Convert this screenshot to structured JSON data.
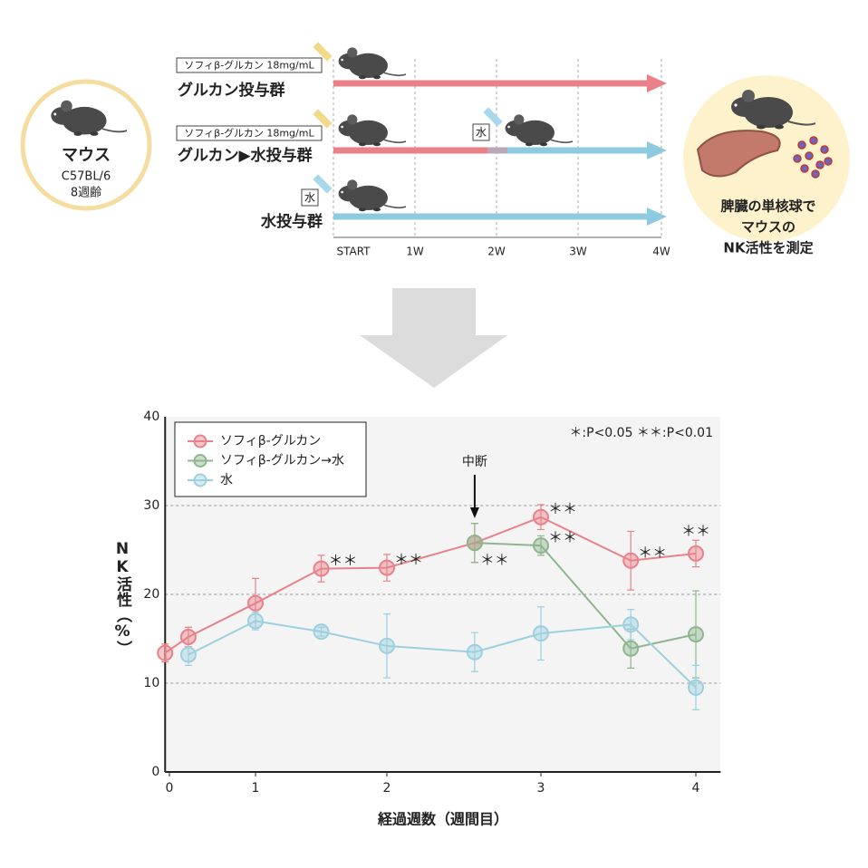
{
  "diagram": {
    "mouse": {
      "title": "マウス",
      "strain": "C57BL/6",
      "age": "8週齢"
    },
    "groups": [
      {
        "dose": "ソフィβ-グルカン 18mg/mL",
        "name": "グルカン投与群"
      },
      {
        "dose": "ソフィβ-グルカン 18mg/mL",
        "name": "グルカン▶水投与群",
        "switch": "水"
      },
      {
        "dose": "水",
        "name": "水投与群"
      }
    ],
    "timeline": [
      "START",
      "1W",
      "2W",
      "3W",
      "4W"
    ],
    "result": [
      "脾臓の単核球で",
      "マウスの",
      "NK活性を測定"
    ]
  },
  "chart_data": {
    "type": "line",
    "xlabel": "経過週数（週間目）",
    "ylabel": "NK活性（%）",
    "note": "＊:P<0.05 ＊＊:P<0.01",
    "annotation": {
      "text": "中断",
      "x": 2.57
    },
    "xlim": [
      -0.05,
      4.16
    ],
    "xticks": [
      0,
      1,
      2,
      3,
      4
    ],
    "ylim": [
      0,
      40
    ],
    "yticks": [
      0,
      10,
      20,
      30,
      40
    ],
    "grid": true,
    "legend": "upper-left",
    "series": [
      {
        "name": "ソフィβ-グルカン",
        "color": "#e8828a",
        "x": [
          -0.05,
          0.22,
          1,
          1.5,
          2,
          2.57,
          3,
          3.58,
          4
        ],
        "values": [
          13.4,
          15.2,
          19.0,
          22.9,
          23.0,
          25.8,
          28.7,
          23.8,
          24.6
        ],
        "errors": [
          1.0,
          1.1,
          2.8,
          1.5,
          1.5,
          2.2,
          1.4,
          3.3,
          1.5
        ],
        "annotations": [
          null,
          null,
          null,
          "＊＊",
          "＊＊",
          "＊＊",
          "＊＊",
          "＊＊",
          "＊＊"
        ]
      },
      {
        "name": "ソフィβ-グルカン→水",
        "color": "#8fb58f",
        "x": [
          2.57,
          3,
          3.58,
          4
        ],
        "values": [
          25.8,
          25.5,
          13.9,
          15.5
        ],
        "errors": [
          2.2,
          1.1,
          2.2,
          4.9
        ],
        "annotations": [
          null,
          "＊＊",
          null,
          null
        ]
      },
      {
        "name": "水",
        "color": "#9dd0df",
        "x": [
          0.22,
          1,
          1.5,
          2,
          2.57,
          3,
          3.58,
          4
        ],
        "values": [
          13.2,
          17.0,
          15.8,
          14.2,
          13.5,
          15.6,
          16.6,
          9.5
        ],
        "errors": [
          1.2,
          1.0,
          0.5,
          3.6,
          2.2,
          3.0,
          1.7,
          2.5
        ],
        "annotations": [
          null,
          null,
          null,
          null,
          null,
          null,
          null,
          null
        ]
      }
    ]
  }
}
